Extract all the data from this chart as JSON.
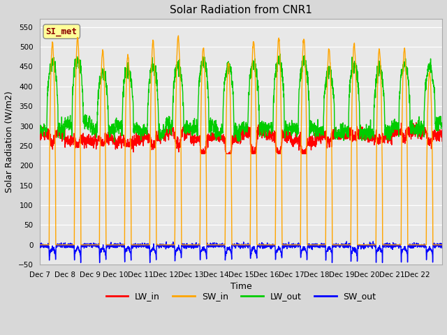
{
  "title": "Solar Radiation from CNR1",
  "xlabel": "Time",
  "ylabel": "Solar Radiation (W/m2)",
  "ylim": [
    -50,
    570
  ],
  "yticks": [
    -50,
    0,
    50,
    100,
    150,
    200,
    250,
    300,
    350,
    400,
    450,
    500,
    550
  ],
  "annotation_text": "SI_met",
  "annotation_color": "#8B0000",
  "annotation_bg": "#FFFF99",
  "series": {
    "LW_in": {
      "color": "#FF0000",
      "lw": 1.0
    },
    "SW_in": {
      "color": "#FFA500",
      "lw": 1.0
    },
    "LW_out": {
      "color": "#00CC00",
      "lw": 1.0
    },
    "SW_out": {
      "color": "#0000FF",
      "lw": 1.0
    }
  },
  "xtick_labels": [
    "Dec 7",
    "Dec 8",
    "Dec 9",
    "Dec 10",
    "Dec 11",
    "Dec 12",
    "Dec 13",
    "Dec 14",
    "Dec 15",
    "Dec 16",
    "Dec 17",
    "Dec 18",
    "Dec 19",
    "Dec 20",
    "Dec 21",
    "Dec 22"
  ],
  "n_days": 16,
  "pts_per_day": 144
}
